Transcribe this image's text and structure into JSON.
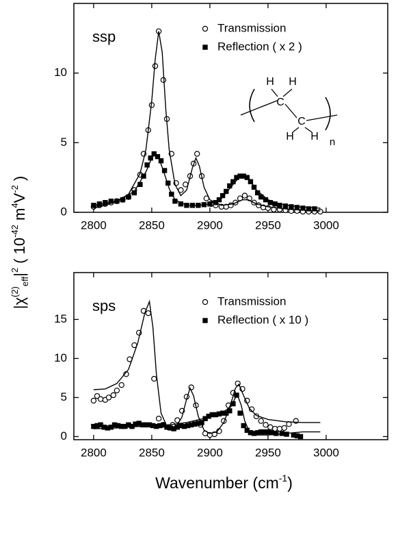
{
  "chart_data": [
    {
      "type": "scatter",
      "label": "ssp",
      "xlim": [
        2783,
        3053
      ],
      "ylim": [
        0,
        15
      ],
      "xticks": [
        2800,
        2850,
        2900,
        2950,
        3000
      ],
      "yticks": [
        0,
        5,
        10
      ],
      "ylabel": [
        {
          "text": "|χ",
          "pos": "base"
        },
        {
          "text": "(2)",
          "pos": "sup"
        },
        {
          "text": "eff",
          "pos": "sub"
        },
        {
          "text": "|",
          "pos": "base"
        },
        {
          "text": "2",
          "pos": "sup"
        },
        {
          "text": "  ( 10",
          "pos": "base"
        },
        {
          "text": "-42",
          "pos": "sup"
        },
        {
          "text": " m",
          "pos": "base"
        },
        {
          "text": "4",
          "pos": "sup"
        },
        {
          "text": "V",
          "pos": "base"
        },
        {
          "text": "-2",
          "pos": "sup"
        },
        {
          "text": " )",
          "pos": "base"
        }
      ],
      "structure_labels": [
        "H",
        "H",
        "C",
        "C",
        "H",
        "H",
        "n"
      ],
      "series": [
        {
          "name": "Transmission",
          "marker": "circle",
          "color": "#000000",
          "x": [
            2800,
            2805,
            2810,
            2815,
            2820,
            2825,
            2830,
            2835,
            2840,
            2843,
            2847,
            2850,
            2853,
            2856,
            2860,
            2863,
            2867,
            2871,
            2875,
            2879,
            2883,
            2886,
            2889,
            2893,
            2897,
            2901,
            2905,
            2910,
            2914,
            2918,
            2922,
            2926,
            2930,
            2934,
            2938,
            2942,
            2946,
            2950,
            2955,
            2960,
            2965,
            2970,
            2975,
            2980,
            2985,
            2990,
            2995
          ],
          "values": [
            0.4,
            0.5,
            0.6,
            0.7,
            0.8,
            0.9,
            1.1,
            1.6,
            2.7,
            4.2,
            5.9,
            7.7,
            10.5,
            13.0,
            9.5,
            6.7,
            4.2,
            2.1,
            1.6,
            2.0,
            2.6,
            3.5,
            4.2,
            2.6,
            1.0,
            0.6,
            0.5,
            0.4,
            0.4,
            0.5,
            0.7,
            1.0,
            1.2,
            1.0,
            0.7,
            0.5,
            0.35,
            0.3,
            0.2,
            0.2,
            0.15,
            0.1,
            0.1,
            0.05,
            0.05,
            0.05,
            0.05
          ]
        },
        {
          "name": "Reflection  ( x 2 )",
          "marker": "square",
          "color": "#000000",
          "x": [
            2800,
            2805,
            2810,
            2815,
            2820,
            2825,
            2830,
            2835,
            2840,
            2843,
            2846,
            2849,
            2852,
            2855,
            2858,
            2861,
            2864,
            2867,
            2870,
            2875,
            2880,
            2885,
            2890,
            2895,
            2900,
            2905,
            2908,
            2911,
            2914,
            2917,
            2920,
            2923,
            2926,
            2929,
            2932,
            2935,
            2938,
            2941,
            2944,
            2948,
            2952,
            2956,
            2960,
            2965,
            2970,
            2975,
            2980,
            2985,
            2990
          ],
          "values": [
            0.5,
            0.6,
            0.7,
            0.8,
            0.8,
            0.9,
            1.1,
            1.4,
            2.0,
            2.6,
            3.4,
            3.9,
            4.2,
            4.0,
            3.7,
            3.0,
            2.1,
            1.3,
            0.8,
            0.6,
            0.5,
            0.5,
            0.5,
            0.55,
            0.6,
            0.7,
            0.9,
            1.2,
            1.5,
            1.9,
            2.2,
            2.5,
            2.6,
            2.6,
            2.5,
            2.2,
            1.8,
            1.4,
            1.1,
            0.9,
            0.7,
            0.6,
            0.5,
            0.45,
            0.4,
            0.35,
            0.3,
            0.25,
            0.25
          ]
        },
        {
          "style": "line",
          "color": "#000000",
          "x": [
            2800,
            2810,
            2820,
            2830,
            2840,
            2845,
            2850,
            2853,
            2856,
            2859,
            2862,
            2865,
            2870,
            2875,
            2880,
            2885,
            2888,
            2891,
            2895,
            2900,
            2910,
            2920,
            2928,
            2933,
            2940,
            2950,
            2970,
            2995
          ],
          "values": [
            0.3,
            0.5,
            0.8,
            1.3,
            2.8,
            4.5,
            8.0,
            11.0,
            13.0,
            11.5,
            7.5,
            4.5,
            2.0,
            1.2,
            1.6,
            3.2,
            3.9,
            3.3,
            1.8,
            0.9,
            0.5,
            0.6,
            0.9,
            0.9,
            0.6,
            0.4,
            0.2,
            0.1
          ]
        },
        {
          "style": "line",
          "color": "#000000",
          "x": [
            2800,
            2820,
            2835,
            2845,
            2850,
            2853,
            2856,
            2860,
            2865,
            2870,
            2880,
            2890,
            2900,
            2910,
            2918,
            2925,
            2929,
            2933,
            2940,
            2950,
            2960,
            2975,
            2995
          ],
          "values": [
            0.5,
            0.8,
            1.5,
            2.9,
            3.9,
            4.2,
            3.9,
            3.0,
            1.7,
            0.9,
            0.5,
            0.5,
            0.6,
            1.0,
            1.8,
            2.5,
            2.7,
            2.5,
            1.6,
            0.9,
            0.6,
            0.4,
            0.3
          ]
        }
      ]
    },
    {
      "type": "scatter",
      "label": "sps",
      "xlim": [
        2783,
        3053
      ],
      "ylim": [
        -0.4,
        21
      ],
      "xticks": [
        2800,
        2850,
        2900,
        2950,
        3000
      ],
      "yticks": [
        0,
        5,
        10,
        15
      ],
      "xlabel": "Wavenumber (cm",
      "xlabel_sup": "-1",
      "xlabel_end": ")",
      "series": [
        {
          "name": "Transmission",
          "marker": "circle",
          "color": "#000000",
          "x": [
            2800,
            2803,
            2806,
            2810,
            2813,
            2817,
            2820,
            2824,
            2828,
            2831,
            2835,
            2839,
            2843,
            2847,
            2852,
            2856,
            2860,
            2864,
            2868,
            2872,
            2876,
            2880,
            2884,
            2888,
            2892,
            2896,
            2900,
            2904,
            2908,
            2912,
            2916,
            2920,
            2924,
            2928,
            2932,
            2936,
            2940,
            2944,
            2948,
            2952,
            2956,
            2960,
            2964,
            2968,
            2974
          ],
          "values": [
            4.6,
            5.2,
            4.8,
            4.7,
            5.0,
            5.3,
            5.9,
            6.6,
            8.0,
            9.9,
            11.7,
            13.3,
            16.1,
            15.8,
            7.4,
            2.3,
            1.5,
            1.2,
            1.5,
            2.1,
            3.3,
            5.1,
            6.3,
            4.0,
            1.5,
            0.4,
            0.2,
            0.3,
            0.7,
            2.0,
            4.0,
            5.6,
            6.8,
            6.1,
            4.6,
            3.5,
            2.6,
            2.0,
            1.5,
            1.2,
            1.0,
            1.0,
            1.1,
            1.6,
            2.0
          ]
        },
        {
          "name": "Reflection  ( x 10 )",
          "marker": "square",
          "color": "#000000",
          "x": [
            2800,
            2803,
            2806,
            2809,
            2812,
            2815,
            2818,
            2821,
            2824,
            2827,
            2830,
            2833,
            2836,
            2839,
            2842,
            2845,
            2848,
            2851,
            2854,
            2857,
            2860,
            2863,
            2866,
            2869,
            2872,
            2875,
            2878,
            2881,
            2884,
            2887,
            2890,
            2893,
            2896,
            2899,
            2902,
            2905,
            2908,
            2911,
            2914,
            2917,
            2920,
            2923,
            2926,
            2929,
            2932,
            2935,
            2938,
            2941,
            2944,
            2947,
            2950,
            2953,
            2957,
            2962,
            2966,
            2972,
            2975,
            2978
          ],
          "values": [
            1.3,
            1.4,
            1.5,
            1.2,
            1.1,
            1.2,
            1.5,
            1.4,
            1.3,
            1.3,
            1.5,
            1.3,
            1.6,
            1.7,
            1.5,
            1.5,
            1.5,
            1.4,
            1.3,
            1.4,
            1.5,
            1.2,
            1.1,
            1.0,
            1.2,
            1.4,
            1.3,
            1.4,
            1.5,
            1.6,
            1.7,
            1.8,
            2.3,
            2.6,
            2.8,
            2.8,
            2.9,
            3.0,
            3.0,
            3.3,
            4.2,
            5.3,
            3.0,
            1.4,
            0.8,
            0.5,
            0.4,
            0.5,
            0.6,
            0.6,
            0.6,
            0.5,
            0.4,
            0.4,
            0.3,
            0.2,
            0.1,
            0.0
          ]
        },
        {
          "style": "line",
          "color": "#000000",
          "x": [
            2800,
            2810,
            2820,
            2830,
            2838,
            2844,
            2848,
            2851,
            2854,
            2858,
            2864,
            2870,
            2876,
            2880,
            2883,
            2886,
            2890,
            2895,
            2900,
            2906,
            2912,
            2918,
            2922,
            2925,
            2928,
            2934,
            2940,
            2950,
            2965,
            2980,
            2995
          ],
          "values": [
            6.0,
            6.1,
            6.8,
            8.6,
            12.0,
            15.8,
            17.3,
            14.0,
            8.0,
            3.0,
            1.0,
            1.0,
            2.5,
            4.8,
            6.2,
            5.2,
            2.6,
            0.8,
            0.4,
            0.6,
            1.8,
            4.2,
            6.2,
            6.7,
            5.6,
            3.6,
            2.7,
            2.2,
            1.9,
            1.8,
            1.8
          ]
        },
        {
          "style": "line",
          "color": "#000000",
          "x": [
            2800,
            2820,
            2840,
            2860,
            2880,
            2900,
            2912,
            2918,
            2922,
            2924,
            2927,
            2930,
            2934,
            2940,
            2950,
            2965,
            2980,
            2995
          ],
          "values": [
            1.0,
            1.1,
            1.3,
            1.4,
            1.8,
            2.5,
            3.2,
            3.8,
            5.0,
            5.2,
            4.0,
            2.0,
            0.6,
            0.2,
            0.2,
            0.4,
            0.6,
            0.6
          ]
        }
      ]
    }
  ]
}
